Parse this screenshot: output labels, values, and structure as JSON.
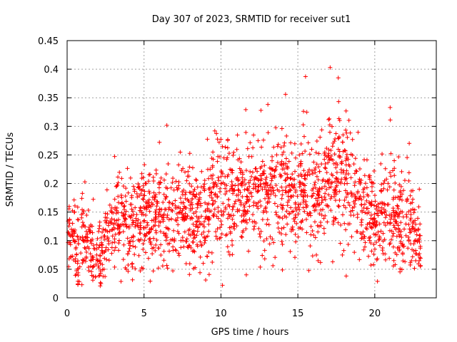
{
  "chart_data": {
    "type": "scatter",
    "title": "Day 307 of 2023, SRMTID for receiver sut1",
    "xlabel": "GPS time / hours",
    "ylabel": "SRMTID / TECUs",
    "xlim": [
      0,
      24
    ],
    "ylim": [
      0,
      0.45
    ],
    "xticks": [
      0,
      5,
      10,
      15,
      20
    ],
    "xtick_labels": [
      "0",
      "5",
      "10",
      "15",
      "20"
    ],
    "yticks": [
      0,
      0.05,
      0.1,
      0.15,
      0.2,
      0.25,
      0.3,
      0.35,
      0.4,
      0.45
    ],
    "ytick_labels": [
      "0",
      "0.05",
      "0.1",
      "0.15",
      "0.2",
      "0.25",
      "0.3",
      "0.35",
      "0.4",
      "0.45"
    ],
    "grid": true,
    "marker": "+",
    "color": "#ff0000",
    "trend": [
      [
        0.0,
        0.11
      ],
      [
        0.5,
        0.09
      ],
      [
        1.0,
        0.095
      ],
      [
        1.5,
        0.09
      ],
      [
        2.0,
        0.07
      ],
      [
        2.5,
        0.1
      ],
      [
        3.0,
        0.13
      ],
      [
        3.5,
        0.14
      ],
      [
        4.0,
        0.13
      ],
      [
        5.0,
        0.14
      ],
      [
        6.0,
        0.15
      ],
      [
        7.0,
        0.145
      ],
      [
        8.0,
        0.14
      ],
      [
        9.0,
        0.145
      ],
      [
        9.5,
        0.17
      ],
      [
        10.0,
        0.18
      ],
      [
        11.0,
        0.17
      ],
      [
        12.0,
        0.175
      ],
      [
        13.0,
        0.185
      ],
      [
        14.0,
        0.19
      ],
      [
        15.0,
        0.175
      ],
      [
        15.5,
        0.2
      ],
      [
        16.0,
        0.16
      ],
      [
        16.5,
        0.175
      ],
      [
        17.0,
        0.21
      ],
      [
        17.5,
        0.22
      ],
      [
        18.0,
        0.21
      ],
      [
        18.5,
        0.19
      ],
      [
        19.0,
        0.17
      ],
      [
        20.0,
        0.14
      ],
      [
        21.0,
        0.15
      ],
      [
        22.0,
        0.13
      ],
      [
        22.5,
        0.12
      ],
      [
        23.0,
        0.1
      ]
    ],
    "notable_points": [
      {
        "x": 17.1,
        "y": 0.403
      },
      {
        "x": 15.5,
        "y": 0.387
      },
      {
        "x": 14.2,
        "y": 0.356
      },
      {
        "x": 21.0,
        "y": 0.333
      },
      {
        "x": 12.6,
        "y": 0.328
      },
      {
        "x": 9.6,
        "y": 0.292
      },
      {
        "x": 6.0,
        "y": 0.272
      },
      {
        "x": 0.7,
        "y": 0.023
      },
      {
        "x": 2.2,
        "y": 0.025
      },
      {
        "x": 5.6,
        "y": 0.047
      }
    ],
    "n_points": 2000,
    "seed": 307
  }
}
